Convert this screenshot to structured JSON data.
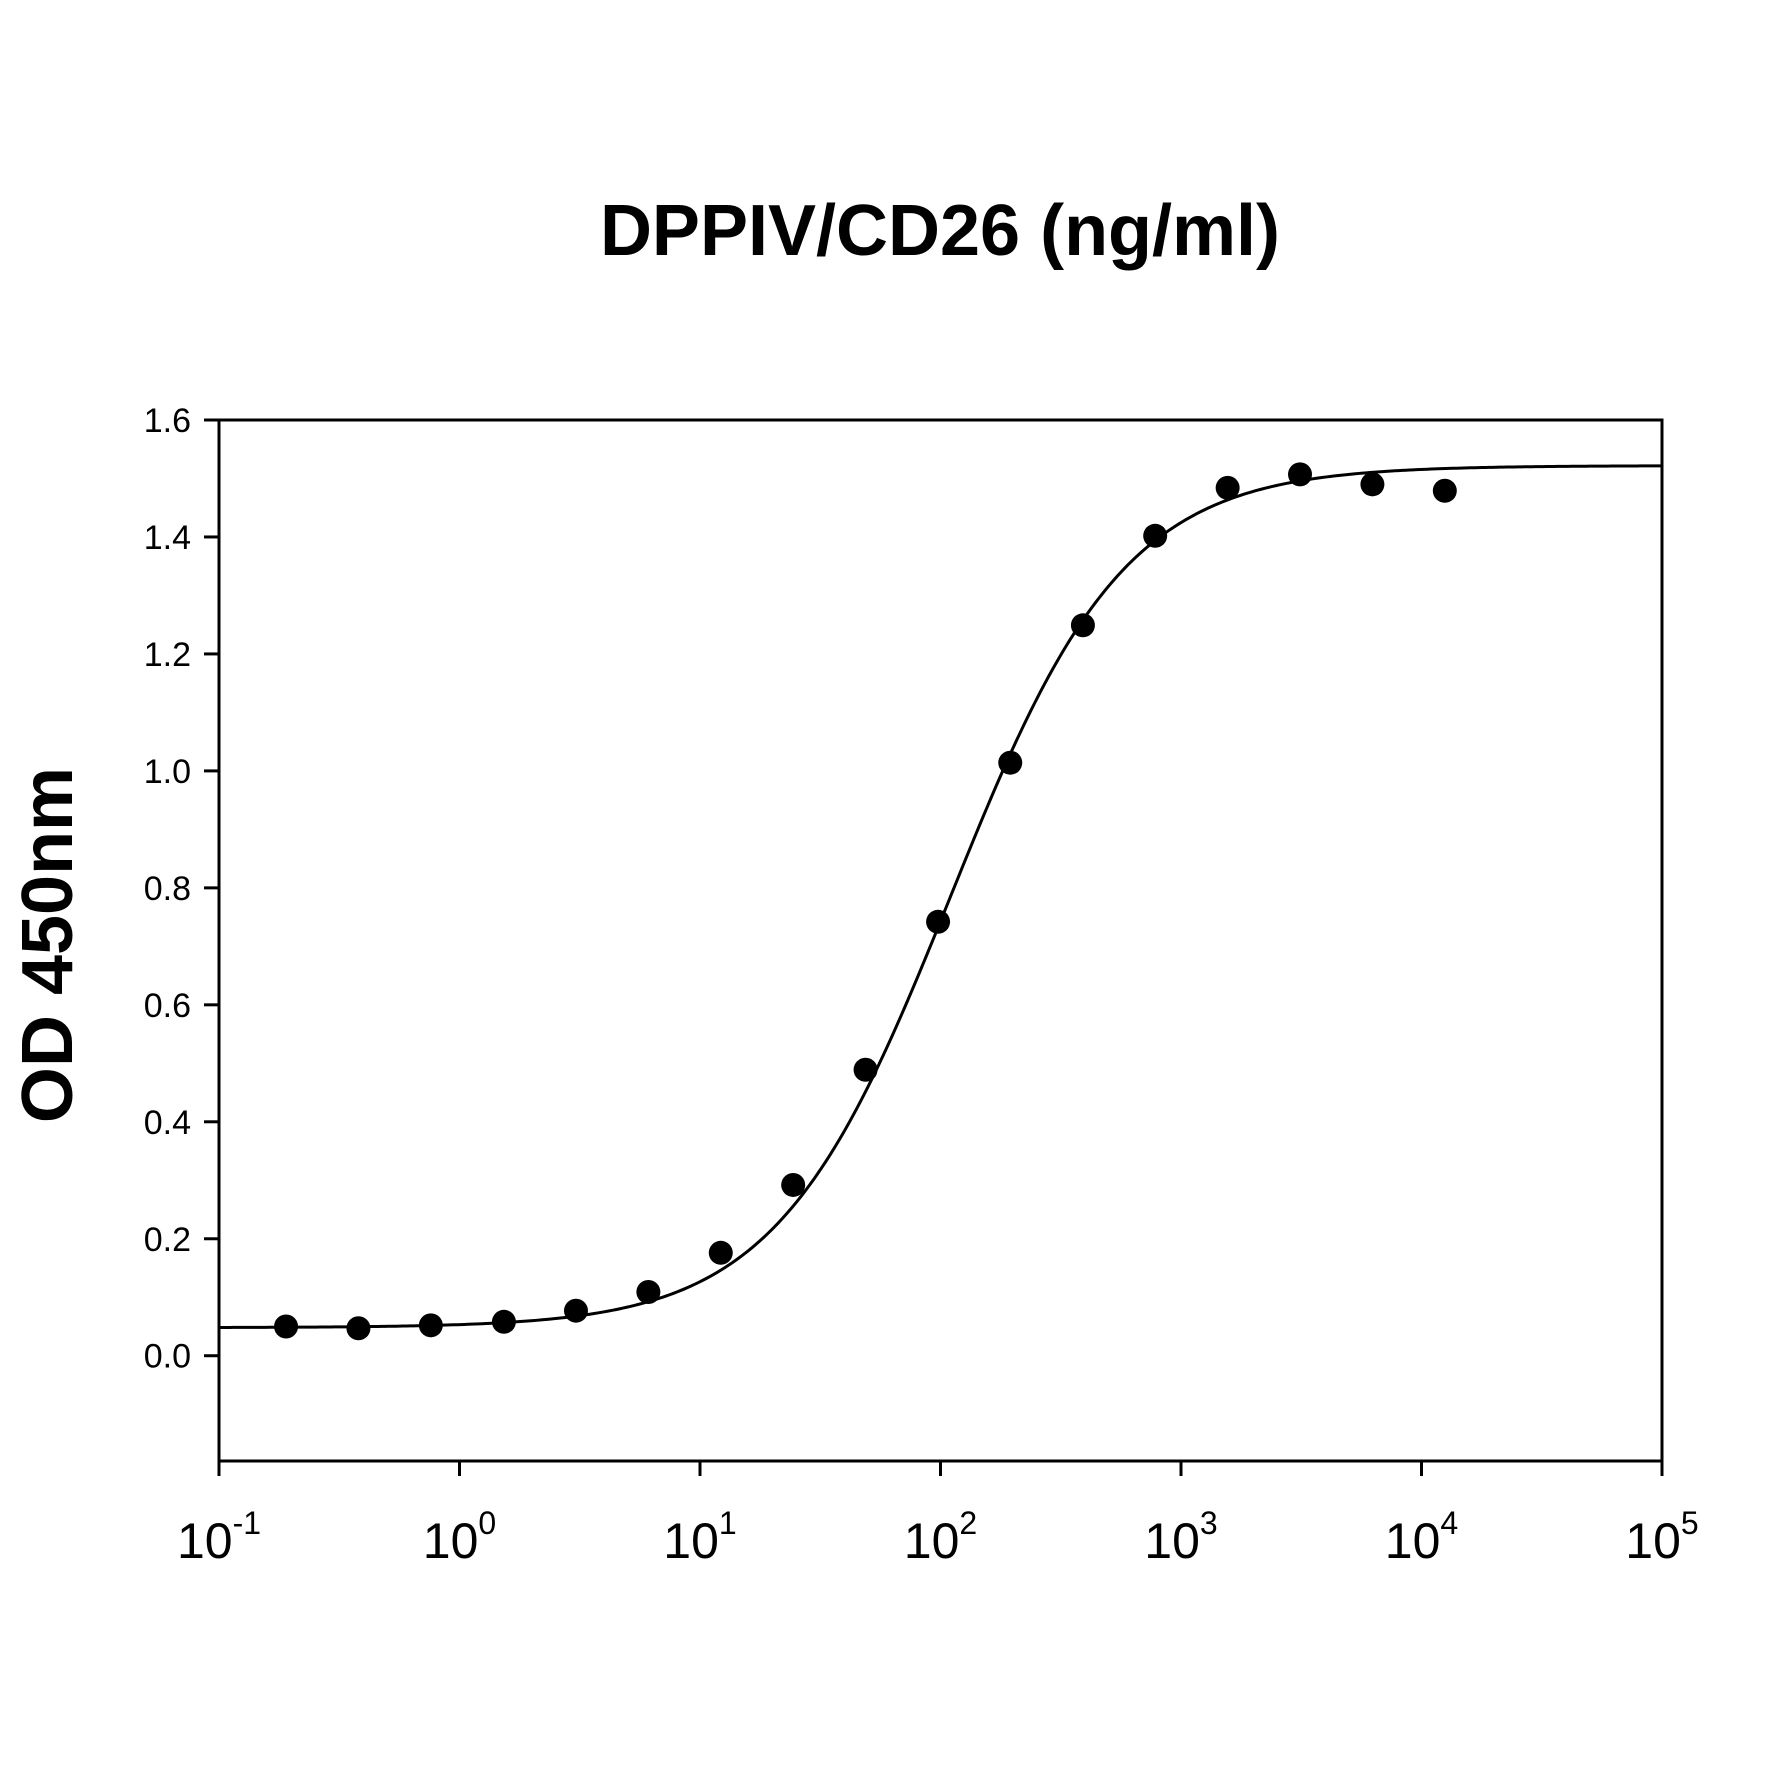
{
  "chart_data": {
    "type": "scatter",
    "title": "DPPIV/CD26 (ng/ml)",
    "xlabel": "",
    "ylabel": "OD 450nm",
    "x_scale": "log",
    "xlim": [
      0.1,
      100000
    ],
    "ylim": [
      -0.18,
      1.6
    ],
    "grid": false,
    "x_ticks": [
      {
        "value": 0.1,
        "base": "10",
        "exp": "-1"
      },
      {
        "value": 1,
        "base": "10",
        "exp": "0"
      },
      {
        "value": 10,
        "base": "10",
        "exp": "1"
      },
      {
        "value": 100,
        "base": "10",
        "exp": "2"
      },
      {
        "value": 1000,
        "base": "10",
        "exp": "3"
      },
      {
        "value": 10000,
        "base": "10",
        "exp": "4"
      },
      {
        "value": 100000,
        "base": "10",
        "exp": "5"
      }
    ],
    "y_ticks": [
      {
        "value": 0.0,
        "label": "0.0"
      },
      {
        "value": 0.2,
        "label": "0.2"
      },
      {
        "value": 0.4,
        "label": "0.4"
      },
      {
        "value": 0.6,
        "label": "0.6"
      },
      {
        "value": 0.8,
        "label": "0.8"
      },
      {
        "value": 1.0,
        "label": "1.0"
      },
      {
        "value": 1.2,
        "label": "1.2"
      },
      {
        "value": 1.4,
        "label": "1.4"
      },
      {
        "value": 1.6,
        "label": "1.6"
      }
    ],
    "series": [
      {
        "type": "scatter",
        "marker": "filled-circle",
        "color": "#000000",
        "x": [
          0.19,
          0.38,
          0.76,
          1.53,
          3.05,
          6.1,
          12.2,
          24.4,
          48.8,
          97.7,
          195,
          391,
          781,
          1563,
          3125,
          6250,
          12500
        ],
        "y": [
          0.05,
          0.047,
          0.052,
          0.058,
          0.077,
          0.109,
          0.176,
          0.292,
          0.489,
          0.742,
          1.014,
          1.249,
          1.402,
          1.484,
          1.507,
          1.49,
          1.479
        ]
      },
      {
        "type": "line",
        "fit": "4-parameter logistic",
        "color": "#000000",
        "bottom": 0.048,
        "top": 1.522,
        "ec50": 110,
        "hill": 1.2
      }
    ]
  }
}
